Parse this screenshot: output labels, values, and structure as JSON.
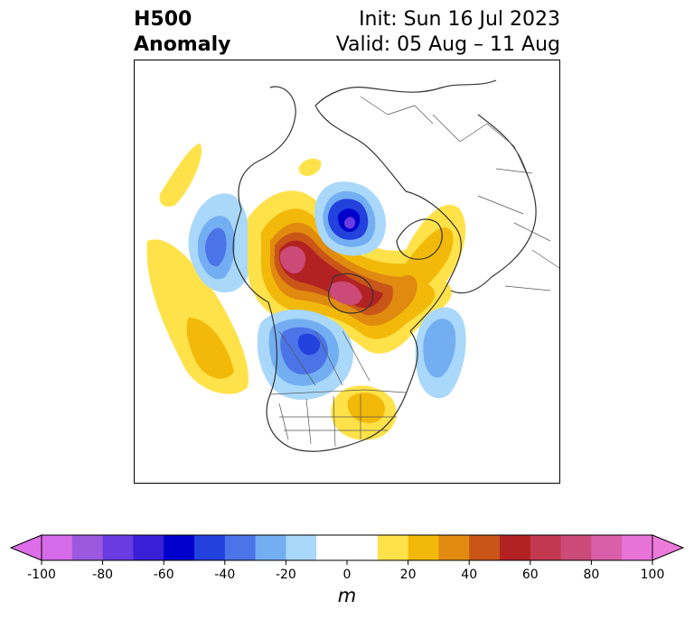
{
  "title": {
    "line1": "H500",
    "line2": "Anomaly",
    "init": "Init: Sun 16 Jul 2023",
    "valid": "Valid: 05 Aug – 11 Aug"
  },
  "colorbar": {
    "unit": "m",
    "ticks": [
      "-100",
      "-80",
      "-60",
      "-40",
      "-20",
      "0",
      "20",
      "40",
      "60",
      "80",
      "100"
    ],
    "levels": [
      -100,
      -90,
      -80,
      -70,
      -60,
      -50,
      -40,
      -30,
      -20,
      -10,
      10,
      20,
      30,
      40,
      50,
      60,
      70,
      80,
      90,
      100
    ],
    "colors": [
      "#d56be8",
      "#9b59e0",
      "#6a3be0",
      "#3a1fd6",
      "#0000cc",
      "#2241dd",
      "#4a74e8",
      "#74aef2",
      "#a9d8fa",
      "#ffffff",
      "#ffe24a",
      "#f2b90a",
      "#e08b10",
      "#c95518",
      "#b22222",
      "#c2384f",
      "#cc4a77",
      "#d95fa8",
      "#e873d8"
    ],
    "under_color": "#dd6de8",
    "over_color": "#ec79dc"
  }
}
